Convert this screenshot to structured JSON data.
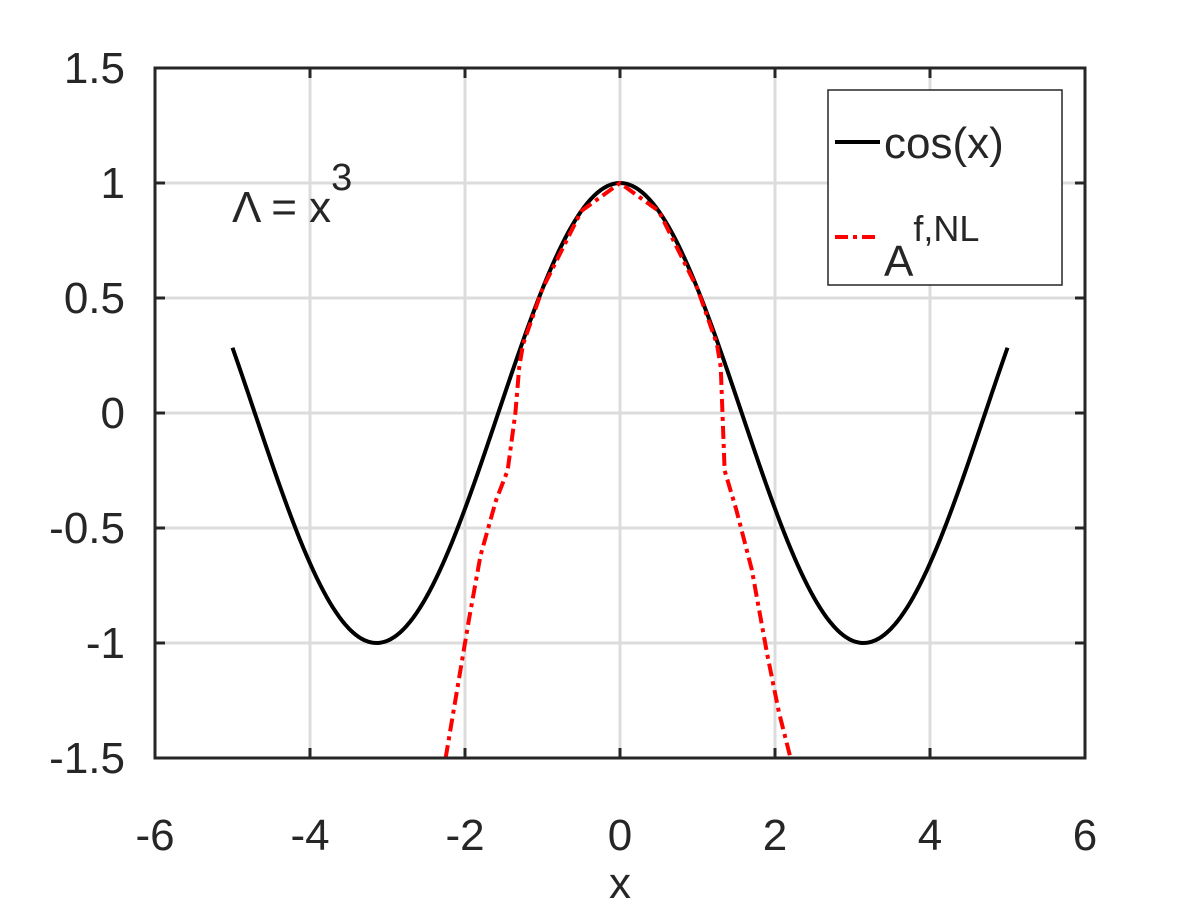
{
  "chart_data": {
    "type": "line",
    "xlabel": "x",
    "ylabel": "",
    "xlim": [
      -6,
      6
    ],
    "ylim": [
      -1.5,
      1.5
    ],
    "xticks": [
      "-6",
      "-4",
      "-2",
      "0",
      "2",
      "4",
      "6"
    ],
    "yticks": [
      "1.5",
      "1",
      "0.5",
      "0",
      "-0.5",
      "-1",
      "-1.5"
    ],
    "grid": true,
    "legend_position": "top-right",
    "annotation": {
      "base": "Λ = x",
      "superscript": "3"
    },
    "series": [
      {
        "name": "cos(x)",
        "color": "#000000",
        "style": "solid",
        "x": [
          -5,
          -4.5,
          -4,
          -3.5,
          -3.14,
          -3,
          -2.5,
          -2,
          -1.5,
          -1,
          -0.5,
          0,
          0.5,
          1,
          1.5,
          2,
          2.5,
          3,
          3.14,
          3.5,
          4,
          4.5,
          5
        ],
        "y": [
          0.284,
          -0.211,
          -0.654,
          -0.936,
          -1.0,
          -0.99,
          -0.801,
          -0.416,
          0.071,
          0.54,
          0.878,
          1.0,
          0.878,
          0.54,
          0.071,
          -0.416,
          -0.801,
          -0.99,
          -1.0,
          -0.936,
          -0.654,
          -0.211,
          0.284
        ]
      },
      {
        "name_base": "A",
        "name_superscript": "f,NL",
        "color": "#ff0000",
        "style": "dashdot",
        "x": [
          -2.25,
          -2.1,
          -1.95,
          -1.8,
          -1.6,
          -1.45,
          -1.35,
          -1.3,
          -1.25,
          -1.0,
          -0.5,
          0,
          0.5,
          1.0,
          1.25,
          1.3,
          1.35,
          1.5,
          1.7,
          1.9,
          2.05,
          2.2
        ],
        "y": [
          -1.5,
          -1.2,
          -0.9,
          -0.62,
          -0.38,
          -0.25,
          0.0,
          0.2,
          0.3,
          0.54,
          0.878,
          1.0,
          0.878,
          0.54,
          0.3,
          0.2,
          -0.25,
          -0.42,
          -0.68,
          -1.05,
          -1.3,
          -1.5
        ]
      }
    ]
  }
}
